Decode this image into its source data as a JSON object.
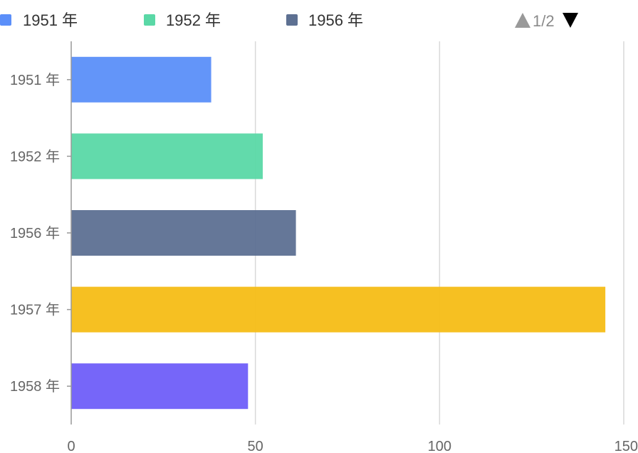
{
  "chart_data": {
    "type": "bar",
    "orientation": "horizontal",
    "categories": [
      "1951 年",
      "1952 年",
      "1956 年",
      "1957 年",
      "1958 年"
    ],
    "values": [
      38,
      52,
      61,
      145,
      48
    ],
    "colors": [
      "#5B8FF9",
      "#5AD8A6",
      "#5D7092",
      "#F6BD16",
      "#6F5EF9"
    ],
    "xlim": [
      0,
      150
    ],
    "xticks": [
      0,
      50,
      100,
      150
    ],
    "grid": true,
    "legend": {
      "placement": "top",
      "items": [
        {
          "label": "1951 年",
          "color": "#5B8FF9"
        },
        {
          "label": "1952 年",
          "color": "#5AD8A6"
        },
        {
          "label": "1956 年",
          "color": "#5D7092"
        }
      ],
      "pager": {
        "text": "1/2",
        "up_icon": "triangle-up-icon",
        "down_icon": "triangle-down-icon",
        "up_color": "#999999",
        "down_color": "#000000"
      }
    },
    "title": "",
    "xlabel": "",
    "ylabel": ""
  }
}
